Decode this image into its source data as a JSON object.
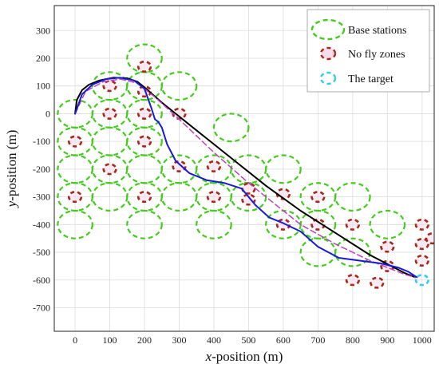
{
  "chart_data": {
    "type": "scatter",
    "title": "",
    "xlabel_var": "x",
    "xlabel_rest": "-position (m)",
    "ylabel_var": "y",
    "ylabel_rest": "-position (m)",
    "xlim": [
      -60,
      1035
    ],
    "ylim": [
      -785,
      390
    ],
    "xticks": [
      0,
      100,
      200,
      300,
      400,
      500,
      600,
      700,
      800,
      900,
      1000
    ],
    "yticks": [
      300,
      200,
      100,
      0,
      -100,
      -200,
      -300,
      -400,
      -500,
      -600,
      -700
    ],
    "grid": true,
    "legend_position": "top-right",
    "legend": [
      {
        "label": "Base stations",
        "marker": "dashed-circle",
        "color": "#43cc1c"
      },
      {
        "label": "No fly zones",
        "marker": "dashed-circle",
        "color": "#a52a1a"
      },
      {
        "label": "The target",
        "marker": "dashed-circle",
        "color": "#33ccee"
      }
    ],
    "colors": {
      "base_station": "#43cc1c",
      "no_fly_zone": "#a52a1a",
      "target": "#33ccee",
      "path_black": "#000000",
      "path_blue": "#1a1ad6",
      "path_magenta": "#c040c0"
    },
    "base_station_radius": 50,
    "no_fly_zone_radius": 18,
    "target_radius": 18,
    "base_stations": [
      {
        "x": 200,
        "y": 200
      },
      {
        "x": 100,
        "y": 100
      },
      {
        "x": 200,
        "y": 100
      },
      {
        "x": 300,
        "y": 100
      },
      {
        "x": 0,
        "y": 0
      },
      {
        "x": 100,
        "y": 0
      },
      {
        "x": 200,
        "y": 0
      },
      {
        "x": 450,
        "y": -50
      },
      {
        "x": 0,
        "y": -100
      },
      {
        "x": 100,
        "y": -100
      },
      {
        "x": 200,
        "y": -100
      },
      {
        "x": 0,
        "y": -200
      },
      {
        "x": 100,
        "y": -200
      },
      {
        "x": 200,
        "y": -200
      },
      {
        "x": 300,
        "y": -200
      },
      {
        "x": 400,
        "y": -200
      },
      {
        "x": 500,
        "y": -200
      },
      {
        "x": 600,
        "y": -200
      },
      {
        "x": 0,
        "y": -300
      },
      {
        "x": 100,
        "y": -300
      },
      {
        "x": 200,
        "y": -300
      },
      {
        "x": 300,
        "y": -300
      },
      {
        "x": 400,
        "y": -300
      },
      {
        "x": 500,
        "y": -300
      },
      {
        "x": 700,
        "y": -300
      },
      {
        "x": 800,
        "y": -300
      },
      {
        "x": 0,
        "y": -400
      },
      {
        "x": 200,
        "y": -400
      },
      {
        "x": 400,
        "y": -400
      },
      {
        "x": 600,
        "y": -400
      },
      {
        "x": 700,
        "y": -400
      },
      {
        "x": 900,
        "y": -400
      },
      {
        "x": 700,
        "y": -500
      },
      {
        "x": 800,
        "y": -500
      }
    ],
    "no_fly_zones": [
      {
        "x": 200,
        "y": 170
      },
      {
        "x": 100,
        "y": 100
      },
      {
        "x": 200,
        "y": 80
      },
      {
        "x": 100,
        "y": 0
      },
      {
        "x": 200,
        "y": 0
      },
      {
        "x": 300,
        "y": 0
      },
      {
        "x": 0,
        "y": -100
      },
      {
        "x": 200,
        "y": -100
      },
      {
        "x": 100,
        "y": -200
      },
      {
        "x": 300,
        "y": -190
      },
      {
        "x": 400,
        "y": -190
      },
      {
        "x": 0,
        "y": -300
      },
      {
        "x": 200,
        "y": -300
      },
      {
        "x": 400,
        "y": -300
      },
      {
        "x": 500,
        "y": -270
      },
      {
        "x": 500,
        "y": -310
      },
      {
        "x": 600,
        "y": -290
      },
      {
        "x": 700,
        "y": -300
      },
      {
        "x": 600,
        "y": -400
      },
      {
        "x": 700,
        "y": -400
      },
      {
        "x": 800,
        "y": -400
      },
      {
        "x": 1000,
        "y": -400
      },
      {
        "x": 900,
        "y": -480
      },
      {
        "x": 1000,
        "y": -470
      },
      {
        "x": 1030,
        "y": -450
      },
      {
        "x": 900,
        "y": -550
      },
      {
        "x": 1000,
        "y": -530
      },
      {
        "x": 800,
        "y": -600
      },
      {
        "x": 870,
        "y": -610
      }
    ],
    "target": {
      "x": 1000,
      "y": -600
    },
    "paths": [
      {
        "color": "#000000",
        "dash": "solid",
        "width": 2,
        "x": [
          0,
          5,
          20,
          40,
          70,
          110,
          150,
          180,
          200,
          250,
          350,
          450,
          550,
          650,
          750,
          850,
          950,
          980
        ],
        "y": [
          0,
          50,
          85,
          105,
          120,
          130,
          128,
          115,
          95,
          40,
          -60,
          -160,
          -260,
          -350,
          -430,
          -510,
          -575,
          -590
        ]
      },
      {
        "color": "#c040c0",
        "dash": "dashed",
        "width": 1.5,
        "x": [
          0,
          30,
          80,
          130,
          180,
          230,
          300,
          400,
          500,
          580,
          650,
          750,
          850,
          950,
          980
        ],
        "y": [
          0,
          80,
          115,
          125,
          110,
          60,
          -20,
          -140,
          -250,
          -330,
          -400,
          -470,
          -530,
          -580,
          -590
        ]
      },
      {
        "color": "#1a1ad6",
        "dash": "solid",
        "width": 2,
        "x": [
          0,
          20,
          50,
          90,
          130,
          170,
          200,
          220,
          230,
          240,
          250,
          265,
          290,
          330,
          380,
          430,
          480,
          520,
          560,
          600,
          650,
          700,
          760,
          820,
          880,
          930,
          960,
          985
        ],
        "y": [
          0,
          70,
          105,
          125,
          130,
          120,
          90,
          20,
          -20,
          -30,
          -50,
          -110,
          -170,
          -215,
          -240,
          -250,
          -270,
          -330,
          -375,
          -395,
          -425,
          -480,
          -520,
          -530,
          -540,
          -555,
          -570,
          -590
        ]
      }
    ]
  }
}
